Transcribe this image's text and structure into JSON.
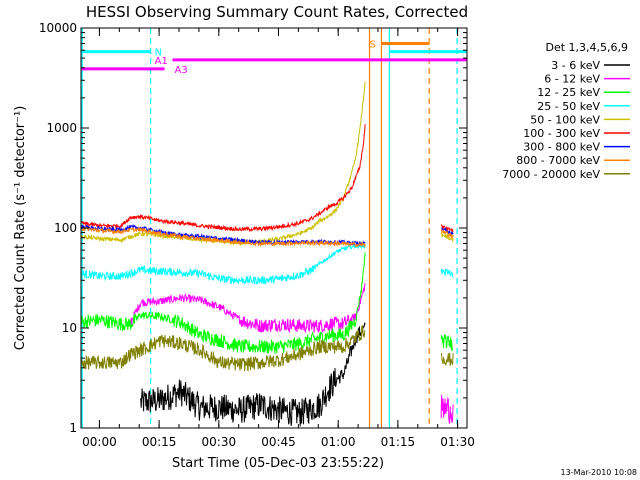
{
  "chart_data": {
    "type": "line",
    "title": "HESSI Observing Summary Count Rates, Corrected",
    "xlabel": "Start Time (05-Dec-03 23:55:22)",
    "ylabel": "Corrected Count Rate (s⁻¹ detector⁻¹)",
    "ylim": [
      1,
      10000
    ],
    "yscale": "log",
    "x_unit": "minutes since start",
    "xlim": [
      0,
      97
    ],
    "xticks": [
      {
        "value": 4.63,
        "label": "00:00"
      },
      {
        "value": 19.63,
        "label": "00:15"
      },
      {
        "value": 34.63,
        "label": "00:30"
      },
      {
        "value": 49.63,
        "label": "00:45"
      },
      {
        "value": 64.63,
        "label": "01:00"
      },
      {
        "value": 79.63,
        "label": "01:15"
      },
      {
        "value": 94.63,
        "label": "01:30"
      }
    ],
    "yticks": [
      {
        "value": 1,
        "label": "1"
      },
      {
        "value": 10,
        "label": "10"
      },
      {
        "value": 100,
        "label": "100"
      },
      {
        "value": 1000,
        "label": "1000"
      },
      {
        "value": 10000,
        "label": "10000"
      }
    ],
    "legend_title": "Det 1,3,4,5,6,9",
    "legend_position": "right",
    "series": [
      {
        "name": "3 - 6 keV",
        "color": "#000000",
        "x": [
          15,
          20,
          25,
          30,
          35,
          40,
          45,
          50,
          55,
          60,
          62,
          64,
          66,
          67,
          68,
          69,
          70,
          71.5
        ],
        "y": [
          1.8,
          1.9,
          2.3,
          1.6,
          1.6,
          1.5,
          1.7,
          1.5,
          1.4,
          1.7,
          2.4,
          3.0,
          3.5,
          4.5,
          6,
          8,
          9,
          10
        ]
      },
      {
        "name": "6 - 12 keV",
        "color": "#ff00ff",
        "x": [
          12.5,
          14,
          15,
          20,
          25,
          30,
          35,
          40,
          45,
          50,
          55,
          60,
          63,
          66,
          69,
          70.5,
          71.5
        ],
        "y": [
          11.5,
          15,
          18,
          18.5,
          20,
          19,
          16,
          12,
          10.5,
          11,
          10.5,
          10.5,
          11,
          11,
          13,
          20,
          28
        ]
      },
      {
        "name": "12 - 25 keV",
        "color": "#00ff00",
        "x": [
          0,
          5,
          10,
          12.5,
          15,
          20,
          25,
          30,
          35,
          40,
          45,
          50,
          55,
          60,
          63,
          66,
          69,
          70.5,
          71.5
        ],
        "y": [
          11.5,
          12,
          11,
          11,
          13.5,
          13,
          11.5,
          8.5,
          7.5,
          6.5,
          6.5,
          6.5,
          7,
          8,
          8.5,
          8.5,
          12,
          25,
          60
        ]
      },
      {
        "name": "25 - 50 keV",
        "color": "#00ffff",
        "x": [
          0,
          5,
          10,
          15,
          20,
          25,
          30,
          35,
          40,
          45,
          50,
          55,
          58,
          60,
          62,
          64,
          66,
          68,
          70,
          71.5
        ],
        "y": [
          35,
          33,
          33,
          38,
          37,
          36,
          35,
          31,
          30,
          30,
          31,
          34,
          38,
          44,
          50,
          57,
          62,
          65,
          66,
          66
        ]
      },
      {
        "name": "50 - 100 keV",
        "color": "#ccc000",
        "x": [
          0,
          5,
          10,
          12.5,
          15,
          20,
          25,
          30,
          35,
          40,
          45,
          50,
          55,
          58,
          60,
          62,
          64,
          66,
          68,
          69,
          70,
          71,
          71.5
        ],
        "y": [
          82,
          78,
          76,
          82,
          88,
          84,
          80,
          76,
          73,
          71,
          73,
          78,
          88,
          100,
          118,
          130,
          150,
          200,
          350,
          500,
          900,
          2000,
          3300
        ]
      },
      {
        "name": "100 - 300 keV",
        "color": "#ff0000",
        "x": [
          0,
          5,
          10,
          12.5,
          15,
          20,
          25,
          30,
          35,
          40,
          45,
          50,
          55,
          58,
          60,
          62,
          64,
          66,
          68,
          70,
          71,
          71.5
        ],
        "y": [
          112,
          105,
          105,
          128,
          130,
          118,
          112,
          105,
          101,
          97,
          98,
          103,
          112,
          125,
          140,
          160,
          175,
          200,
          250,
          400,
          700,
          1200
        ]
      },
      {
        "name": "300 - 800 keV",
        "color": "#0000ff",
        "x": [
          0,
          5,
          10,
          12.5,
          15,
          20,
          25,
          30,
          35,
          40,
          45,
          50,
          55,
          60,
          65,
          70,
          71.5
        ],
        "y": [
          103,
          98,
          96,
          102,
          100,
          91,
          85,
          82,
          78,
          75,
          72,
          72,
          73,
          73,
          72,
          70,
          69
        ]
      },
      {
        "name": "800 - 7000 keV",
        "color": "#ff8000",
        "x": [
          0,
          5,
          10,
          12.5,
          15,
          20,
          25,
          30,
          35,
          40,
          45,
          50,
          55,
          60,
          65,
          70,
          71.5
        ],
        "y": [
          99,
          94,
          92,
          96,
          96,
          88,
          82,
          78,
          75,
          72,
          70,
          70,
          71,
          71,
          70,
          68,
          68
        ]
      },
      {
        "name": "7000 - 20000 keV",
        "color": "#808000",
        "x": [
          0,
          5,
          10,
          12.5,
          15,
          20,
          25,
          30,
          35,
          40,
          45,
          50,
          55,
          60,
          63,
          66,
          69,
          70.5,
          71.5
        ],
        "y": [
          4.5,
          4.5,
          4.5,
          5.5,
          6,
          7.5,
          7,
          6,
          4.5,
          4.3,
          4.5,
          4.8,
          5.5,
          6.5,
          6.5,
          6.5,
          8,
          9,
          9.5
        ]
      }
    ],
    "segments_after_gap": [
      {
        "color": "#ff0000",
        "x": [
          90.5,
          93.5
        ],
        "y": [
          105,
          92
        ]
      },
      {
        "color": "#ccc000",
        "x": [
          90.5,
          93.5
        ],
        "y": [
          88,
          76
        ]
      },
      {
        "color": "#0000ff",
        "x": [
          90.5,
          93.5
        ],
        "y": [
          99,
          86
        ]
      },
      {
        "color": "#ff8000",
        "x": [
          90.5,
          93.5
        ],
        "y": [
          95,
          82
        ]
      },
      {
        "color": "#00ffff",
        "x": [
          90.5,
          93.5
        ],
        "y": [
          37,
          34
        ]
      },
      {
        "color": "#00ff00",
        "x": [
          90.5,
          93.5
        ],
        "y": [
          7.5,
          7.0
        ]
      },
      {
        "color": "#808000",
        "x": [
          90.5,
          93.5
        ],
        "y": [
          5,
          4.8
        ]
      },
      {
        "color": "#ff00ff",
        "x": [
          90.5,
          93.5
        ],
        "y": [
          1.6,
          1.5
        ]
      }
    ],
    "bars": [
      {
        "label": "N",
        "color": "#00ffff",
        "y": 5800,
        "segments": [
          [
            0,
            17.5
          ],
          [
            77.5,
            97
          ]
        ],
        "label_x": 18.5
      },
      {
        "label": "S",
        "color": "#ff8000",
        "y": 7000,
        "segments": [
          [
            75.5,
            87.5
          ]
        ],
        "label_x": 72.5
      },
      {
        "label": "A1",
        "color": "#ff00ff",
        "y": 4800,
        "segments": [
          [
            23,
            97
          ]
        ],
        "label_x": 18.5
      },
      {
        "label": "A3",
        "color": "#ff00ff",
        "y": 3900,
        "segments": [
          [
            0,
            21
          ]
        ],
        "label_x": 23.5
      }
    ],
    "vlines": [
      {
        "x": 0.3,
        "color": "#00ffff",
        "style": "solid"
      },
      {
        "x": 17.5,
        "color": "#00ffff",
        "style": "dashed"
      },
      {
        "x": 72.5,
        "color": "#ff8000",
        "style": "solid"
      },
      {
        "x": 75.5,
        "color": "#ff8000",
        "style": "solid"
      },
      {
        "x": 77.5,
        "color": "#00ffff",
        "style": "solid"
      },
      {
        "x": 87.5,
        "color": "#ff8000",
        "style": "dashed"
      },
      {
        "x": 94.5,
        "color": "#00ffff",
        "style": "dashed"
      }
    ],
    "footer_timestamp": "13-Mar-2010 10:08"
  }
}
